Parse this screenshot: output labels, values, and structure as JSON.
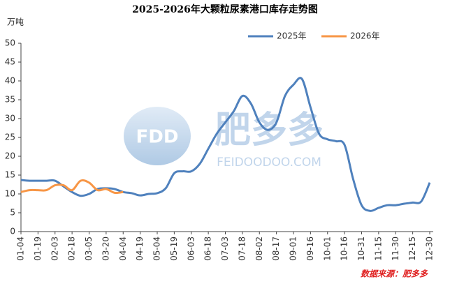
{
  "chart_data": {
    "type": "line",
    "title": "2025-2026年大颗粒尿素港口库存走势图",
    "y_unit": "万吨",
    "source": "数据来源：肥多多",
    "watermark": {
      "logo": "FDD",
      "name": "肥多多",
      "site": "FEIDOODOO.COM"
    },
    "categories": [
      "01-04",
      null,
      "01-19",
      null,
      "02-03",
      null,
      "02-18",
      null,
      "03-05",
      null,
      "03-20",
      null,
      "04-04",
      null,
      "04-19",
      null,
      "05-04",
      null,
      "05-19",
      null,
      "06-03",
      null,
      "06-18",
      null,
      "07-03",
      null,
      "07-18",
      null,
      "08-02",
      null,
      "08-17",
      null,
      "09-01",
      null,
      "09-16",
      null,
      "10-01",
      null,
      "10-16",
      null,
      "10-31",
      null,
      "11-15",
      null,
      "11-30",
      null,
      "12-15",
      null,
      "12-30"
    ],
    "series": [
      {
        "name": "2025年",
        "color": "#4f81bd",
        "values": [
          13.7,
          13.5,
          13.5,
          13.5,
          13.5,
          12,
          10.5,
          9.5,
          10,
          11.3,
          11.5,
          11.3,
          10.5,
          10.2,
          9.6,
          10,
          10.2,
          11.5,
          15.5,
          16,
          16,
          18,
          22,
          26,
          29,
          32,
          36,
          34,
          29,
          27,
          29,
          36,
          39,
          40.5,
          33,
          26,
          24.5,
          24,
          23,
          14,
          7,
          5.5,
          6.3,
          7,
          7,
          7.4,
          7.7,
          8,
          13
        ]
      },
      {
        "name": "2026年",
        "color": "#f79646",
        "values": [
          10.5,
          11,
          11,
          11,
          12.3,
          12.3,
          11,
          13.5,
          13,
          11,
          11.3,
          10.3,
          10.5,
          null,
          null,
          null,
          null,
          null,
          null,
          null,
          null,
          null,
          null,
          null,
          null,
          null,
          null,
          null,
          null,
          null,
          null,
          null,
          null,
          null,
          null,
          null,
          null,
          null,
          null,
          null,
          null,
          null,
          null,
          null,
          null,
          null,
          null,
          null,
          null
        ]
      }
    ],
    "ylim": [
      0,
      50
    ],
    "yticks": [
      0,
      5,
      10,
      15,
      20,
      25,
      30,
      35,
      40,
      45,
      50
    ],
    "grid": false,
    "legend": "top-right"
  }
}
